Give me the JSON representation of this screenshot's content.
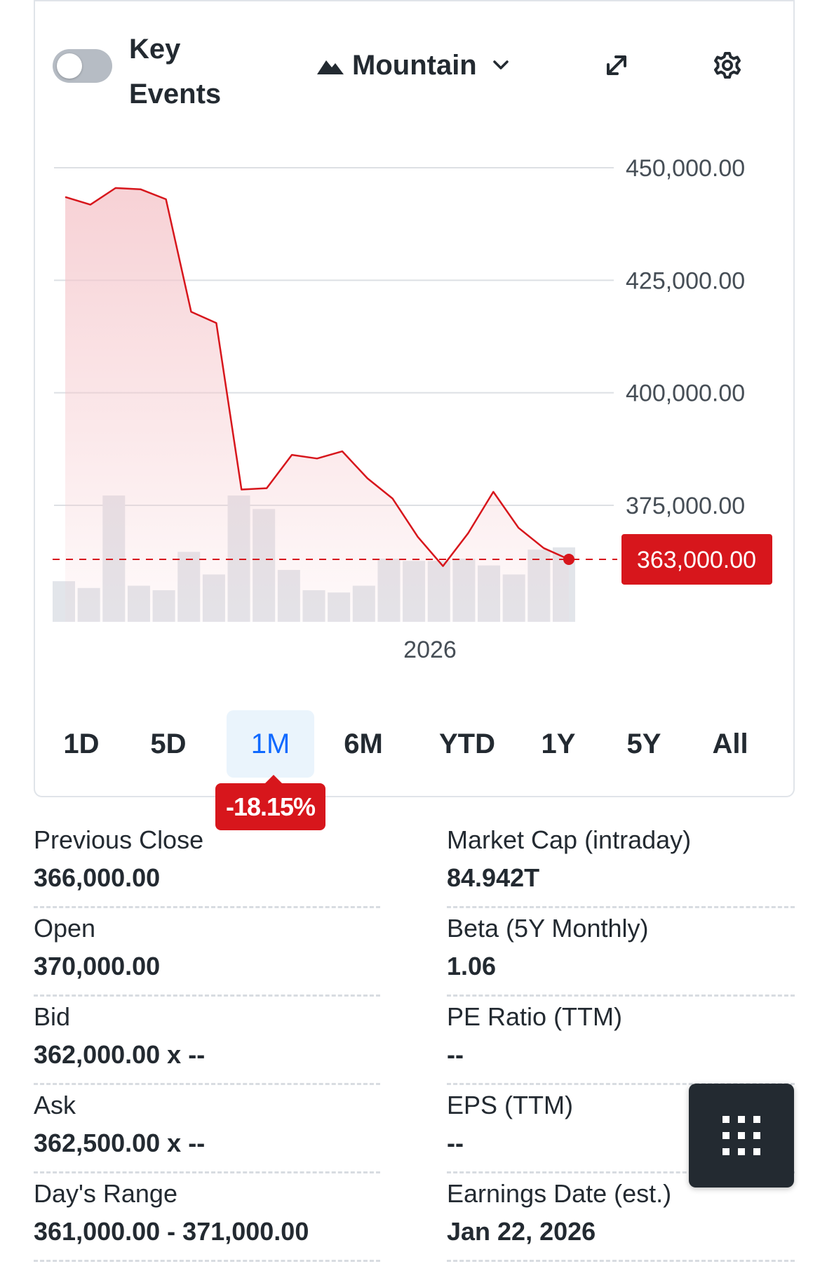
{
  "header": {
    "key_events_toggle": false,
    "key_events_label": "Key Events",
    "chart_type_label": "Mountain",
    "icons": {
      "chart_type": "mountain-icon",
      "dropdown": "chevron-down-icon",
      "expand": "expand-icon",
      "settings": "gear-icon"
    }
  },
  "chart_data": {
    "type": "area",
    "x_label": "2026",
    "y_ticks": [
      "450,000.00",
      "425,000.00",
      "400,000.00",
      "375,000.00"
    ],
    "ylim": [
      360000,
      450000
    ],
    "current_price": 363000,
    "current_price_label": "363,000.00",
    "prices": [
      443500,
      441800,
      445500,
      445200,
      443000,
      418000,
      415500,
      378500,
      378800,
      386200,
      385400,
      387000,
      381000,
      376500,
      368000,
      361500,
      368800,
      378000,
      370000,
      365500,
      363000
    ],
    "volumes": [
      9,
      7.5,
      28,
      8,
      7,
      15.5,
      10.5,
      28,
      25,
      11.5,
      7,
      6.5,
      8,
      14,
      13.5,
      13.5,
      14,
      12.5,
      10.5,
      16,
      16.5
    ],
    "colors": {
      "line": "#d7161c",
      "fill": "#f5c6cb",
      "volume": "#e2e5ea",
      "gridline": "#dde0e4",
      "accent": "#0f69ff"
    }
  },
  "ranges": {
    "items": [
      "1D",
      "5D",
      "1M",
      "6M",
      "YTD",
      "1Y",
      "5Y",
      "All"
    ],
    "active": "1M",
    "change": "-18.15%"
  },
  "stats": {
    "left": [
      {
        "label": "Previous Close",
        "value": "366,000.00"
      },
      {
        "label": "Open",
        "value": "370,000.00"
      },
      {
        "label": "Bid",
        "value": "362,000.00 x --"
      },
      {
        "label": "Ask",
        "value": "362,500.00 x --"
      },
      {
        "label": "Day's Range",
        "value": "361,000.00 - 371,000.00"
      }
    ],
    "right": [
      {
        "label": "Market Cap (intraday)",
        "value": "84.942T"
      },
      {
        "label": "Beta (5Y Monthly)",
        "value": "1.06"
      },
      {
        "label": "PE Ratio (TTM)",
        "value": "--"
      },
      {
        "label": "EPS (TTM)",
        "value": "--"
      },
      {
        "label": "Earnings Date (est.)",
        "value": "Jan 22, 2026"
      }
    ]
  },
  "floating_button": {
    "icon": "grid-icon"
  }
}
